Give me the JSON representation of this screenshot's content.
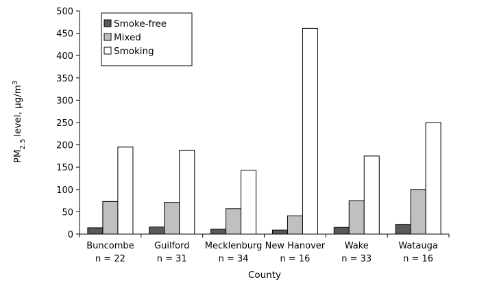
{
  "chart_data": {
    "type": "bar",
    "categories": [
      "Buncombe",
      "Guilford",
      "Mecklenburg",
      "New Hanover",
      "Wake",
      "Watauga"
    ],
    "category_counts": [
      "n = 22",
      "n = 31",
      "n = 34",
      "n = 16",
      "n = 33",
      "n = 16"
    ],
    "series": [
      {
        "name": "Smoke-free",
        "color": "#595959",
        "values": [
          14,
          16,
          11,
          9,
          15,
          22
        ]
      },
      {
        "name": "Mixed",
        "color": "#c0c0c0",
        "values": [
          73,
          71,
          57,
          41,
          75,
          100
        ]
      },
      {
        "name": "Smoking",
        "color": "#ffffff",
        "values": [
          195,
          188,
          143,
          461,
          175,
          250
        ]
      }
    ],
    "xlabel": "County",
    "ylabel": {
      "main": "PM",
      "sub": "2.5",
      "rest": "level, µg/m",
      "sup": "3"
    },
    "ylim": [
      0,
      500
    ],
    "yticks": [
      0,
      50,
      100,
      150,
      200,
      250,
      300,
      350,
      400,
      450,
      500
    ],
    "grid": false,
    "legend_position": "top-left"
  }
}
